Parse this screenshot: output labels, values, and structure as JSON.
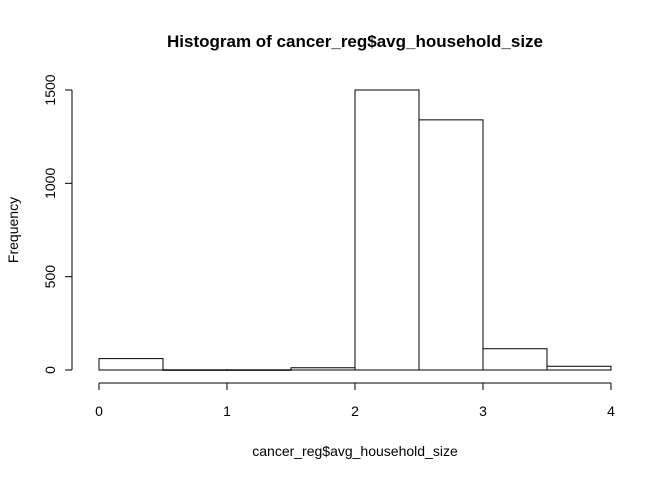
{
  "chart_data": {
    "type": "bar",
    "title": "Histogram of cancer_reg$avg_household_size",
    "xlabel": "cancer_reg$avg_household_size",
    "ylabel": "Frequency",
    "bins": [
      {
        "x0": 0.0,
        "x1": 0.5,
        "count": 61
      },
      {
        "x0": 0.5,
        "x1": 1.0,
        "count": 1
      },
      {
        "x0": 1.0,
        "x1": 1.5,
        "count": 1
      },
      {
        "x0": 1.5,
        "x1": 2.0,
        "count": 12
      },
      {
        "x0": 2.0,
        "x1": 2.5,
        "count": 1500
      },
      {
        "x0": 2.5,
        "x1": 3.0,
        "count": 1340
      },
      {
        "x0": 3.0,
        "x1": 3.5,
        "count": 114
      },
      {
        "x0": 3.5,
        "x1": 4.0,
        "count": 20
      }
    ],
    "xlim": [
      0,
      4
    ],
    "ylim": [
      0,
      1500
    ],
    "x_ticks": [
      "0",
      "1",
      "2",
      "3",
      "4"
    ],
    "y_ticks": [
      "0",
      "500",
      "1000",
      "1500"
    ],
    "grid": false
  }
}
